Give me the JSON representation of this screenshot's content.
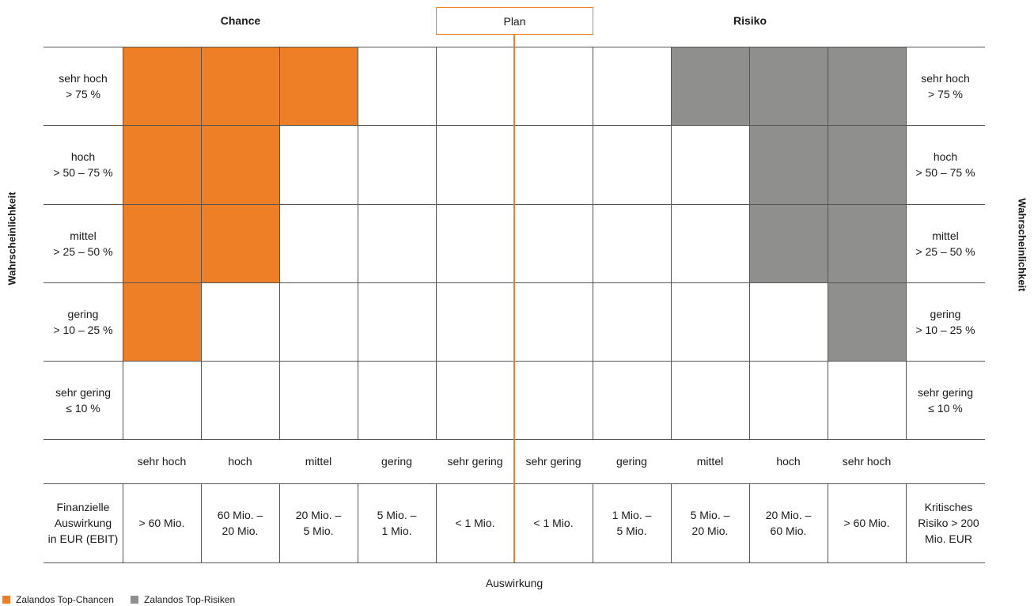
{
  "header": {
    "chance": "Chance",
    "plan": "Plan",
    "risiko": "Risiko"
  },
  "side_axis_label": "Wahrscheinlichkeit",
  "rows": [
    {
      "line1": "sehr hoch",
      "line2": "> 75 %"
    },
    {
      "line1": "hoch",
      "line2": "> 50 – 75 %"
    },
    {
      "line1": "mittel",
      "line2": "> 25 – 50 %"
    },
    {
      "line1": "gering",
      "line2": "> 10 – 25 %"
    },
    {
      "line1": "sehr gering",
      "line2": "≤ 10 %"
    }
  ],
  "impact_levels": [
    "sehr hoch",
    "hoch",
    "mittel",
    "gering",
    "sehr gering",
    "sehr gering",
    "gering",
    "mittel",
    "hoch",
    "sehr hoch"
  ],
  "financial": {
    "left_label": [
      "Finanzielle",
      "Auswirkung",
      "in EUR (EBIT)"
    ],
    "right_label": [
      "Kritisches",
      "Risiko > 200",
      "Mio. EUR"
    ],
    "columns": [
      [
        "> 60 Mio."
      ],
      [
        "60 Mio. –",
        "20 Mio."
      ],
      [
        "20 Mio. –",
        "5 Mio."
      ],
      [
        "5 Mio. –",
        "1 Mio."
      ],
      [
        "< 1 Mio."
      ],
      [
        "< 1 Mio."
      ],
      [
        "1 Mio. –",
        "5 Mio."
      ],
      [
        "5 Mio. –",
        "20 Mio."
      ],
      [
        "20 Mio. –",
        "60 Mio."
      ],
      [
        "> 60 Mio."
      ]
    ]
  },
  "matrix": [
    [
      "chance",
      "chance",
      "chance",
      "",
      "",
      "",
      "",
      "risk",
      "risk",
      "risk"
    ],
    [
      "chance",
      "chance",
      "",
      "",
      "",
      "",
      "",
      "",
      "risk",
      "risk"
    ],
    [
      "chance",
      "chance",
      "",
      "",
      "",
      "",
      "",
      "",
      "risk",
      "risk"
    ],
    [
      "chance",
      "",
      "",
      "",
      "",
      "",
      "",
      "",
      "",
      "risk"
    ],
    [
      "",
      "",
      "",
      "",
      "",
      "",
      "",
      "",
      "",
      ""
    ]
  ],
  "axis_title": "Auswirkung",
  "legend": [
    {
      "label": "Zalandos Top-Chancen",
      "color": "#ef7f26"
    },
    {
      "label": "Zalandos Top-Risiken",
      "color": "#8f8f8e"
    }
  ],
  "colors": {
    "chance": "#ef7f26",
    "risk": "#8f8f8e",
    "plan": "#f08023"
  }
}
